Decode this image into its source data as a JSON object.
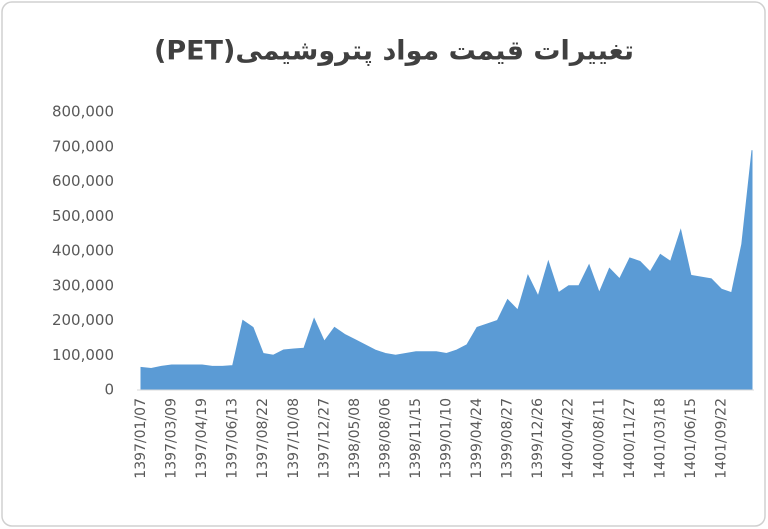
{
  "chart_data": {
    "type": "area",
    "title": "تغییرات قیمت مواد پتروشیمی(PET)",
    "color": "#5b9bd5",
    "categories": [
      "1397/01/07",
      null,
      null,
      "1397/03/09",
      null,
      null,
      "1397/04/19",
      null,
      null,
      "1397/06/13",
      null,
      null,
      "1397/08/22",
      null,
      null,
      "1397/10/08",
      null,
      null,
      "1397/12/27",
      null,
      null,
      "1398/05/08",
      null,
      null,
      "1398/08/06",
      null,
      null,
      "1398/11/15",
      null,
      null,
      "1399/01/10",
      null,
      null,
      "1399/04/24",
      null,
      null,
      "1399/08/27",
      null,
      null,
      "1399/12/26",
      null,
      null,
      "1400/04/22",
      null,
      null,
      "1400/08/11",
      null,
      null,
      "1400/11/27",
      null,
      null,
      "1401/03/18",
      null,
      null,
      "1401/06/15",
      null,
      null,
      "1401/09/22",
      null,
      null,
      null
    ],
    "values": [
      65000,
      62000,
      68000,
      72000,
      72000,
      72000,
      72000,
      68000,
      68000,
      70000,
      200000,
      180000,
      105000,
      100000,
      115000,
      118000,
      120000,
      205000,
      140000,
      180000,
      160000,
      145000,
      130000,
      115000,
      105000,
      100000,
      105000,
      110000,
      110000,
      110000,
      105000,
      115000,
      130000,
      180000,
      190000,
      200000,
      260000,
      230000,
      330000,
      270000,
      370000,
      280000,
      300000,
      300000,
      360000,
      280000,
      350000,
      320000,
      380000,
      370000,
      340000,
      390000,
      370000,
      460000,
      330000,
      325000,
      320000,
      290000,
      280000,
      420000,
      690000
    ],
    "ylim": [
      0,
      800000
    ],
    "yticks": [
      0,
      {
        "value": 100000,
        "label": "100,000"
      },
      {
        "value": 200000,
        "label": "200,000"
      },
      {
        "value": 300000,
        "label": "300,000"
      },
      {
        "value": 400000,
        "label": "400,000"
      },
      {
        "value": 500000,
        "label": "500,000"
      },
      {
        "value": 600000,
        "label": "600,000"
      },
      {
        "value": 700000,
        "label": "700,000"
      },
      {
        "value": 800000,
        "label": "800,000"
      }
    ],
    "grid": false
  }
}
